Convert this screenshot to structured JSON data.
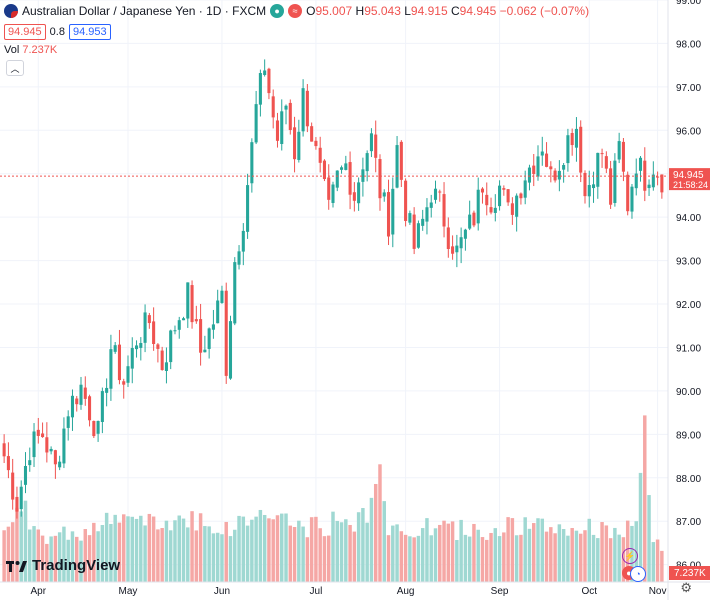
{
  "header": {
    "symbol": "Australian Dollar / Japanese Yen · 1D · FXCM",
    "ohlc": [
      {
        "k": "O",
        "v": "95.007"
      },
      {
        "k": "H",
        "v": "95.043"
      },
      {
        "k": "L",
        "v": "94.915"
      },
      {
        "k": "C",
        "v": "94.945 −0.062 (−0.07%)"
      }
    ],
    "bid": "94.945",
    "spread": "0.8",
    "ask": "94.953",
    "vol_label": "Vol",
    "vol_value": "7.237K",
    "eq_icon": "≈"
  },
  "branding": {
    "name": "TradingView"
  },
  "colors": {
    "up": "#26a69a",
    "down": "#ef5350",
    "up_vol": "#9fd8d2",
    "down_vol": "#f5a7a5",
    "grid": "#f0f3fa",
    "axis_text": "#131722"
  },
  "chart_data": {
    "type": "candlestick",
    "title": "Australian Dollar / Japanese Yen · 1D · FXCM",
    "y_axis": {
      "min": 85.6,
      "max": 99.0,
      "ticks": [
        86.0,
        87.0,
        88.0,
        89.0,
        90.0,
        91.0,
        92.0,
        93.0,
        94.0,
        95.0,
        96.0,
        97.0,
        98.0,
        99.0
      ]
    },
    "x_axis": {
      "labels": [
        "Apr",
        "May",
        "Jun",
        "Jul",
        "Aug",
        "Sep",
        "Oct",
        "Nov"
      ]
    },
    "last_price": {
      "value": 94.945,
      "label": "94.945",
      "countdown": "21:58:24"
    },
    "volume_last": "7.237K",
    "anchors": [
      [
        0,
        88.5
      ],
      [
        3,
        87.4
      ],
      [
        6,
        88.7
      ],
      [
        9,
        89.0
      ],
      [
        12,
        88.2
      ],
      [
        15,
        89.6
      ],
      [
        18,
        90.1
      ],
      [
        22,
        89.0
      ],
      [
        25,
        91.0
      ],
      [
        28,
        90.2
      ],
      [
        31,
        91.2
      ],
      [
        34,
        91.6
      ],
      [
        37,
        90.6
      ],
      [
        40,
        91.5
      ],
      [
        43,
        92.2
      ],
      [
        46,
        90.9
      ],
      [
        49,
        91.6
      ],
      [
        51,
        92.2
      ],
      [
        52,
        90.6
      ],
      [
        54,
        93.0
      ],
      [
        56,
        94.0
      ],
      [
        58,
        95.6
      ],
      [
        59,
        96.5
      ],
      [
        61,
        97.5
      ],
      [
        63,
        96.3
      ],
      [
        64,
        95.8
      ],
      [
        66,
        96.6
      ],
      [
        68,
        95.5
      ],
      [
        70,
        96.8
      ],
      [
        72,
        95.9
      ],
      [
        74,
        95.0
      ],
      [
        76,
        94.1
      ],
      [
        78,
        94.9
      ],
      [
        80,
        95.2
      ],
      [
        82,
        94.5
      ],
      [
        84,
        95.3
      ],
      [
        86,
        95.8
      ],
      [
        88,
        94.6
      ],
      [
        90,
        93.9
      ],
      [
        92,
        95.6
      ],
      [
        94,
        94.2
      ],
      [
        96,
        93.3
      ],
      [
        98,
        93.9
      ],
      [
        100,
        94.6
      ],
      [
        102,
        94.3
      ],
      [
        104,
        93.6
      ],
      [
        106,
        93.2
      ],
      [
        108,
        93.6
      ],
      [
        110,
        94.0
      ],
      [
        112,
        94.8
      ],
      [
        114,
        94.4
      ],
      [
        116,
        94.7
      ],
      [
        118,
        94.1
      ],
      [
        120,
        94.5
      ],
      [
        122,
        95.0
      ],
      [
        124,
        95.3
      ],
      [
        126,
        95.7
      ],
      [
        128,
        94.9
      ],
      [
        130,
        95.3
      ],
      [
        132,
        95.8
      ],
      [
        134,
        96.1
      ],
      [
        136,
        94.5
      ],
      [
        138,
        95.1
      ],
      [
        140,
        95.5
      ],
      [
        142,
        94.4
      ],
      [
        144,
        95.6
      ],
      [
        146,
        94.3
      ],
      [
        148,
        95.3
      ],
      [
        150,
        94.9
      ],
      [
        152,
        95.2
      ],
      [
        154,
        94.9
      ]
    ],
    "volume_anchors": [
      [
        0,
        0.32
      ],
      [
        5,
        0.4
      ],
      [
        10,
        0.26
      ],
      [
        20,
        0.31
      ],
      [
        28,
        0.38
      ],
      [
        36,
        0.33
      ],
      [
        44,
        0.39
      ],
      [
        52,
        0.3
      ],
      [
        56,
        0.36
      ],
      [
        62,
        0.41
      ],
      [
        70,
        0.31
      ],
      [
        80,
        0.36
      ],
      [
        85,
        0.38
      ],
      [
        87,
        0.72
      ],
      [
        90,
        0.3
      ],
      [
        100,
        0.32
      ],
      [
        110,
        0.3
      ],
      [
        120,
        0.33
      ],
      [
        130,
        0.31
      ],
      [
        140,
        0.32
      ],
      [
        148,
        0.3
      ],
      [
        150,
        0.9
      ],
      [
        152,
        0.25
      ],
      [
        154,
        0.18
      ]
    ],
    "candle_count": 155
  }
}
